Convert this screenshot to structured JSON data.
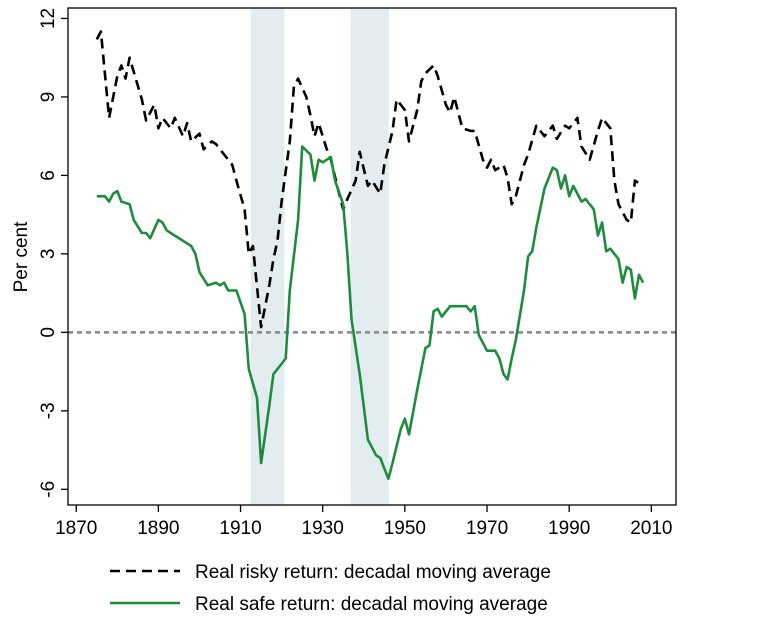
{
  "chart_data": {
    "type": "line",
    "y_label": "Per cent",
    "xlim": [
      1868,
      2016
    ],
    "ylim": [
      -6.6,
      12.4
    ],
    "xticks": [
      1870,
      1890,
      1910,
      1930,
      1950,
      1970,
      1990,
      2010
    ],
    "yticks": [
      12,
      9,
      6,
      3,
      0,
      -3,
      -6
    ],
    "reference_line": {
      "y": 0,
      "color": "#888888",
      "style": "dashed"
    },
    "shaded_periods": {
      "color": "#e3ecee",
      "ranges": [
        [
          1912.5,
          1920.7
        ],
        [
          1936.8,
          1946.1
        ]
      ]
    },
    "legend_position": "bottom",
    "series": [
      {
        "name": "Real risky return: decadal moving average",
        "color": "#000000",
        "line_style": "dashed",
        "x": [
          1875,
          1876,
          1878,
          1880,
          1881,
          1882,
          1883,
          1886,
          1887,
          1889,
          1890,
          1891,
          1892,
          1893,
          1894,
          1896,
          1897,
          1898,
          1900,
          1901,
          1903,
          1904,
          1906,
          1908,
          1909,
          1911,
          1912,
          1913,
          1915,
          1917,
          1918,
          1919,
          1920,
          1922,
          1923,
          1924,
          1926,
          1927,
          1928,
          1929,
          1931,
          1932,
          1934,
          1935,
          1936,
          1938,
          1939,
          1941,
          1942,
          1944,
          1945,
          1947,
          1948,
          1950,
          1951,
          1953,
          1954,
          1955,
          1957,
          1958,
          1960,
          1961,
          1962,
          1964,
          1966,
          1967,
          1969,
          1970,
          1971,
          1972,
          1974,
          1975,
          1976,
          1977,
          1979,
          1980,
          1982,
          1984,
          1986,
          1987,
          1989,
          1990,
          1992,
          1993,
          1995,
          1997,
          1998,
          2000,
          2001,
          2002,
          2004,
          2005,
          2006,
          2008
        ],
        "values": [
          11.2,
          11.5,
          8.2,
          9.8,
          10.2,
          9.7,
          10.5,
          8.9,
          8.1,
          8.7,
          7.8,
          8.2,
          8.0,
          7.8,
          8.2,
          7.5,
          8.0,
          7.3,
          7.6,
          7.0,
          7.3,
          7.2,
          6.8,
          6.4,
          5.8,
          4.7,
          3.0,
          3.3,
          0.2,
          1.8,
          2.8,
          3.5,
          5.0,
          7.3,
          9.4,
          9.7,
          9.0,
          8.3,
          7.5,
          8.0,
          7.0,
          6.6,
          5.3,
          4.7,
          5.1,
          5.8,
          6.9,
          5.6,
          5.8,
          5.3,
          6.4,
          7.7,
          8.9,
          8.5,
          7.3,
          8.5,
          9.6,
          9.9,
          10.2,
          9.8,
          8.7,
          8.4,
          9.0,
          7.8,
          7.7,
          7.7,
          6.6,
          6.3,
          6.6,
          6.2,
          6.4,
          5.9,
          4.9,
          5.2,
          6.4,
          6.8,
          7.9,
          7.5,
          7.9,
          7.4,
          7.9,
          7.8,
          8.2,
          7.1,
          6.6,
          7.7,
          8.2,
          7.8,
          5.8,
          4.9,
          4.3,
          4.2,
          5.8,
          5.6
        ]
      },
      {
        "name": "Real safe return: decadal moving average",
        "color": "#1e8c3e",
        "line_style": "solid",
        "x": [
          1875,
          1877,
          1878,
          1879,
          1880,
          1881,
          1883,
          1884,
          1886,
          1887,
          1888,
          1890,
          1891,
          1892,
          1894,
          1896,
          1898,
          1899,
          1900,
          1902,
          1904,
          1905,
          1906,
          1907,
          1909,
          1911,
          1912,
          1914,
          1915,
          1917,
          1918,
          1919,
          1921,
          1922,
          1924,
          1925,
          1927,
          1928,
          1929,
          1930,
          1932,
          1933,
          1935,
          1936,
          1937,
          1939,
          1941,
          1943,
          1944,
          1946,
          1947,
          1949,
          1950,
          1951,
          1953,
          1955,
          1956,
          1957,
          1958,
          1959,
          1961,
          1963,
          1965,
          1966,
          1967,
          1968,
          1970,
          1972,
          1973,
          1974,
          1975,
          1976,
          1977,
          1979,
          1980,
          1981,
          1982,
          1984,
          1986,
          1987,
          1988,
          1989,
          1990,
          1991,
          1993,
          1994,
          1996,
          1997,
          1998,
          1999,
          2000,
          2002,
          2003,
          2004,
          2005,
          2006,
          2007,
          2008
        ],
        "values": [
          5.2,
          5.2,
          5.0,
          5.3,
          5.4,
          5.0,
          4.9,
          4.3,
          3.8,
          3.8,
          3.6,
          4.3,
          4.2,
          3.9,
          3.7,
          3.5,
          3.3,
          3.0,
          2.3,
          1.8,
          1.9,
          1.8,
          1.9,
          1.6,
          1.6,
          0.7,
          -1.4,
          -2.5,
          -5.0,
          -2.8,
          -1.6,
          -1.4,
          -1.0,
          1.6,
          4.3,
          7.1,
          6.8,
          5.8,
          6.6,
          6.5,
          6.7,
          5.8,
          4.9,
          3.0,
          0.5,
          -1.6,
          -4.1,
          -4.7,
          -4.8,
          -5.6,
          -5.0,
          -3.7,
          -3.3,
          -3.9,
          -2.2,
          -0.6,
          -0.5,
          0.8,
          0.9,
          0.6,
          1.0,
          1.0,
          1.0,
          0.8,
          1.0,
          -0.1,
          -0.7,
          -0.7,
          -1.0,
          -1.6,
          -1.8,
          -1.0,
          -0.3,
          1.6,
          2.9,
          3.1,
          4.0,
          5.5,
          6.3,
          6.2,
          5.5,
          6.0,
          5.2,
          5.6,
          5.0,
          5.1,
          4.7,
          3.7,
          4.2,
          3.1,
          3.2,
          2.8,
          1.9,
          2.5,
          2.4,
          1.3,
          2.2,
          1.9
        ]
      }
    ]
  }
}
